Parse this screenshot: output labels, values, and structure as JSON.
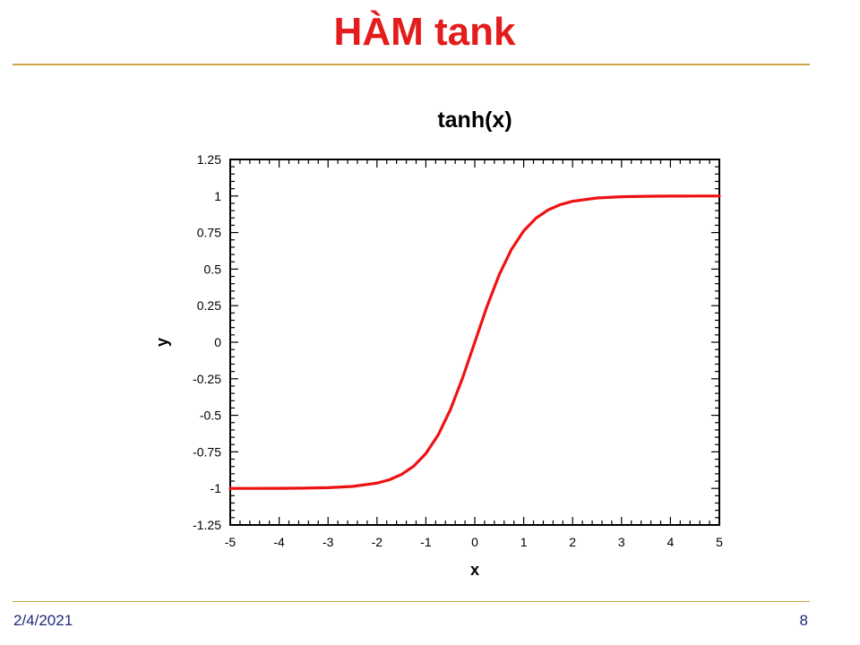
{
  "slide": {
    "title": "HÀM tank",
    "date": "2/4/2021",
    "page_number": "8",
    "accent_color": "#c9a544",
    "title_color": "#e41c1c"
  },
  "chart_data": {
    "type": "line",
    "title": "tanh(x)",
    "xlabel": "x",
    "ylabel": "y",
    "xlim": [
      -5,
      5
    ],
    "ylim": [
      -1.25,
      1.25
    ],
    "x_ticks": [
      "-5",
      "-4",
      "-3",
      "-2",
      "-1",
      "0",
      "1",
      "2",
      "3",
      "4",
      "5"
    ],
    "y_ticks": [
      "-1.25",
      "-1",
      "-0.75",
      "-0.5",
      "-0.25",
      "0",
      "0.25",
      "0.5",
      "0.75",
      "1",
      "1.25"
    ],
    "grid": false,
    "series": [
      {
        "color": "#ee1111",
        "x": [
          -5,
          -4.5,
          -4,
          -3.5,
          -3,
          -2.5,
          -2,
          -1.75,
          -1.5,
          -1.25,
          -1,
          -0.75,
          -0.5,
          -0.25,
          0,
          0.25,
          0.5,
          0.75,
          1,
          1.25,
          1.5,
          1.75,
          2,
          2.5,
          3,
          3.5,
          4,
          4.5,
          5
        ],
        "y": [
          -0.9999,
          -0.9998,
          -0.9993,
          -0.9982,
          -0.9951,
          -0.9866,
          -0.964,
          -0.9414,
          -0.9051,
          -0.8483,
          -0.7616,
          -0.6351,
          -0.4621,
          -0.2449,
          0,
          0.2449,
          0.4621,
          0.6351,
          0.7616,
          0.8483,
          0.9051,
          0.9414,
          0.964,
          0.9866,
          0.9951,
          0.9982,
          0.9993,
          0.9998,
          0.9999
        ]
      }
    ]
  }
}
